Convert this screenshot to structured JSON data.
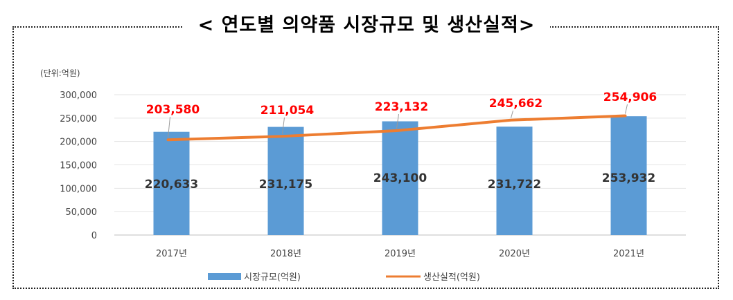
{
  "chart_data": {
    "type": "bar",
    "title": "< 연도별 의약품 시장규모 및 생산실적>",
    "unit_label": "(단위:억원)",
    "categories": [
      "2017년",
      "2018년",
      "2019년",
      "2020년",
      "2021년"
    ],
    "y_ticks": [
      "0",
      "50,000",
      "100,000",
      "150,000",
      "200,000",
      "250,000",
      "300,000"
    ],
    "ylim": [
      0,
      300000
    ],
    "grid": true,
    "legend_position": "bottom",
    "series": [
      {
        "name": "시장규모(억원)",
        "kind": "bar",
        "color": "#5b9bd5",
        "values": [
          220633,
          231175,
          243100,
          231722,
          253932
        ],
        "labels": [
          "220,633",
          "231,175",
          "243,100",
          "231,722",
          "253,932"
        ]
      },
      {
        "name": "생산실적(억원)",
        "kind": "line",
        "color": "#ed7d31",
        "label_color": "#ff0000",
        "values": [
          203580,
          211054,
          223132,
          245662,
          254906
        ],
        "labels": [
          "203,580",
          "211,054",
          "223,132",
          "245,662",
          "254,906"
        ]
      }
    ]
  }
}
